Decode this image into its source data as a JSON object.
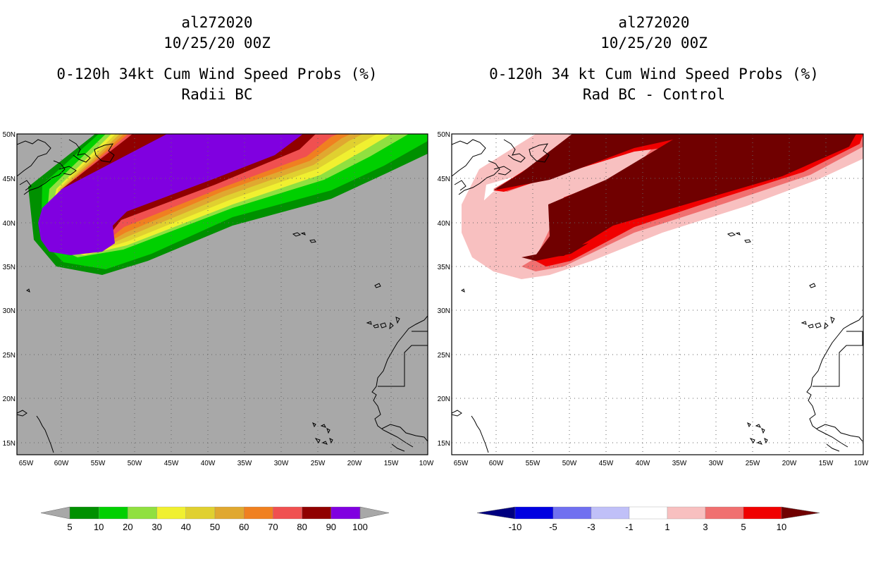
{
  "left_panel": {
    "storm_id": "al272020",
    "datetime": "10/25/20 00Z",
    "product": "0-120h 34kt Cum Wind Speed Probs (%)",
    "subtitle": "Radii BC",
    "lat_labels": [
      "50N",
      "45N",
      "40N",
      "35N",
      "30N",
      "25N",
      "20N",
      "15N"
    ],
    "lon_labels": [
      "65W",
      "60W",
      "55W",
      "50W",
      "45W",
      "40W",
      "35W",
      "30W",
      "25W",
      "20W",
      "15W",
      "10W"
    ],
    "colorbar": {
      "colors": [
        "#009000",
        "#00d000",
        "#90e040",
        "#f0f030",
        "#e0d030",
        "#e0a830",
        "#f08020",
        "#f05050",
        "#900000",
        "#8000e0"
      ],
      "labels": [
        "5",
        "10",
        "20",
        "30",
        "40",
        "50",
        "60",
        "70",
        "80",
        "90",
        "100"
      ],
      "under_color": "#a8a8a8",
      "over_color": "#a8a8a8"
    }
  },
  "right_panel": {
    "storm_id": "al272020",
    "datetime": "10/25/20 00Z",
    "product": "0-120h 34 kt Cum Wind Speed Probs (%)",
    "subtitle": "Rad BC - Control",
    "lat_labels": [
      "50N",
      "45N",
      "40N",
      "35N",
      "30N",
      "25N",
      "20N",
      "15N"
    ],
    "lon_labels": [
      "65W",
      "60W",
      "55W",
      "50W",
      "45W",
      "40W",
      "35W",
      "30W",
      "25W",
      "20W",
      "15W",
      "10W"
    ],
    "colorbar": {
      "colors": [
        "#0000e0",
        "#7070f0",
        "#c0c0f8",
        "#ffffff",
        "#f8c0c0",
        "#f07070",
        "#f00000"
      ],
      "labels": [
        "-10",
        "-5",
        "-3",
        "-1",
        "1",
        "3",
        "5",
        "10"
      ],
      "under_color": "#000080",
      "over_color": "#700000"
    }
  }
}
